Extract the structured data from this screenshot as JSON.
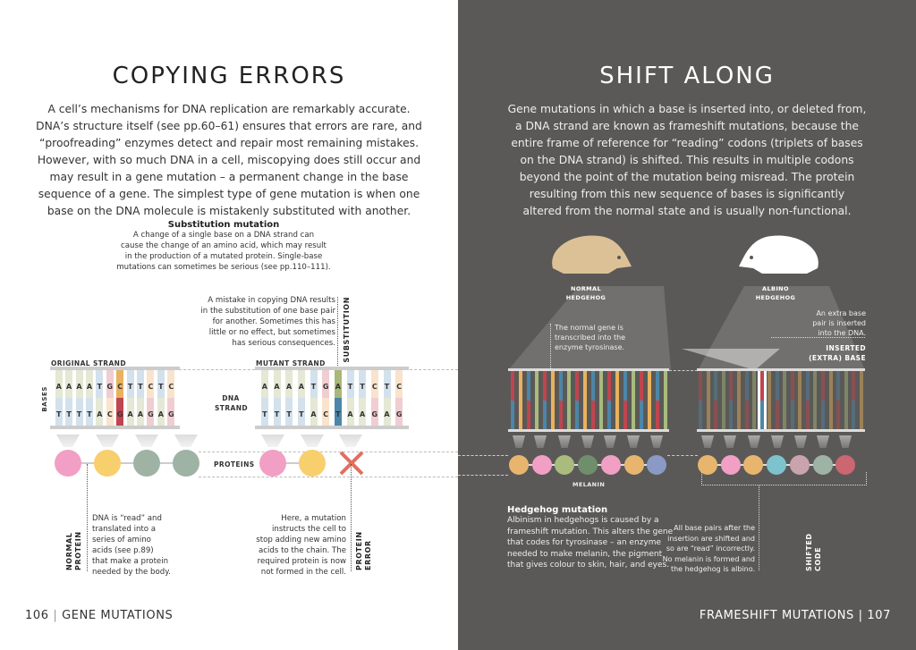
{
  "left": {
    "title": "COPYING ERRORS",
    "intro": [
      "A cell’s mechanisms for DNA replication are remarkably accurate.",
      "DNA’s structure itself (see pp.60–61) ensures that errors are rare, and",
      "“proofreading” enzymes detect and repair most remaining mistakes.",
      "However, with so much DNA in a cell, miscopying does still occur and",
      "may result in a gene mutation – a permanent change in the base",
      "sequence of a gene. The simplest type of gene mutation is when one",
      "base on the DNA molecule is mistakenly substituted with another."
    ],
    "sub_title": "Substitution mutation",
    "sub_text": [
      "A change of a single base on a DNA strand can",
      "cause the change of an amino acid, which may result",
      "in the production of a mutated protein. Single-base",
      "mutations can sometimes be serious (see pp.110–111)."
    ],
    "mistake_text": [
      "A mistake in copying DNA results",
      "in the substitution of one base pair",
      "for another. Sometimes this has",
      "little or no effect, but sometimes",
      "has serious consequences."
    ],
    "substitution_label": "SUBSTITUTION",
    "original_label": "ORIGINAL STRAND",
    "mutant_label": "MUTANT STRAND",
    "bases_label": "BASES",
    "dna_strand_label": "DNA STRAND",
    "proteins_label": "PROTEINS",
    "original_top": [
      "A",
      "A",
      "A",
      "A",
      "T",
      "G",
      "C",
      "T",
      "T",
      "C",
      "T",
      "C"
    ],
    "original_bottom": [
      "T",
      "T",
      "T",
      "T",
      "A",
      "C",
      "G",
      "A",
      "A",
      "G",
      "A",
      "G"
    ],
    "mutant_top": [
      "A",
      "A",
      "A",
      "A",
      "T",
      "G",
      "A",
      "T",
      "T",
      "C",
      "T",
      "C"
    ],
    "mutant_bottom": [
      "T",
      "T",
      "T",
      "T",
      "A",
      "C",
      "T",
      "A",
      "A",
      "G",
      "A",
      "G"
    ],
    "normal_proteins": [
      "#f29fc5",
      "#f8cf6d",
      "#9fb3a4",
      "#9fb3a4"
    ],
    "mutant_proteins": [
      "#f29fc5",
      "#f8cf6d"
    ],
    "normal_note": [
      "DNA is “read” and",
      "translated into a",
      "series of amino",
      "acids (see p.89)",
      "that make a protein",
      "needed by the body."
    ],
    "normal_protein_label": "NORMAL PROTEIN",
    "error_note": [
      "Here, a mutation",
      "instructs the cell to",
      "stop adding new amino",
      "acids to the chain. The",
      "required protein is now",
      "not formed in the cell."
    ],
    "protein_error_label": "PROTEIN ERROR",
    "page_number": "106",
    "section": "GENE MUTATIONS"
  },
  "right": {
    "title": "SHIFT ALONG",
    "intro": [
      "Gene mutations in which a base is inserted into, or deleted from,",
      "a DNA strand are known as frameshift mutations, because the",
      "entire frame of reference for “reading” codons (triplets of bases",
      "on the DNA strand) is shifted. This results in multiple codons",
      "beyond the point of the mutation being misread. The protein",
      "resulting from this new sequence of bases is significantly",
      "altered from the normal state and is usually non-functional."
    ],
    "normal_hedgehog": "NORMAL HEDGEHOG",
    "albino_hedgehog": "ALBINO HEDGEHOG",
    "normal_gene_note": [
      "The normal gene is",
      "transcribed into the",
      "enzyme tyrosinase."
    ],
    "extra_note": [
      "An extra base",
      "pair is inserted",
      "into the DNA."
    ],
    "inserted_label": [
      "INSERTED",
      "(EXTRA) BASE"
    ],
    "melanin_label": "MELANIN",
    "melanin_chain": [
      "#e8b56e",
      "#f29fc5",
      "#a9bb7d",
      "#6f8f6c",
      "#f29fc5",
      "#e8b56e",
      "#8a9ac4"
    ],
    "shifted_chain": [
      "#e8b56e",
      "#f29fc5",
      "#e8b56e",
      "#7cc3cd",
      "#c9a3ad",
      "#9fb3a4",
      "#cc6670"
    ],
    "mutation_title": "Hedgehog mutation",
    "mutation_text": [
      "Albinism in hedgehogs is caused by a",
      "frameshift mutation. This alters the gene",
      "that codes for tyrosinase – an enzyme",
      "needed to make melanin, the pigment",
      "that gives colour to skin, hair, and eyes."
    ],
    "shifted_note": [
      "All base pairs after the",
      "insertion are shifted and",
      "so are “read” incorrectly.",
      "No melanin is formed and",
      "the hedgehog is albino."
    ],
    "shifted_label": "SHIFTED CODE",
    "section": "FRAMESHIFT MUTATIONS",
    "page_number": "107"
  },
  "colors": {
    "left_bg": "#ffffff",
    "right_bg": "#5b5957",
    "normal_hedgehog": "#dcc197",
    "albino_hedgehog": "#ffffff",
    "error_x": "#e07060"
  }
}
